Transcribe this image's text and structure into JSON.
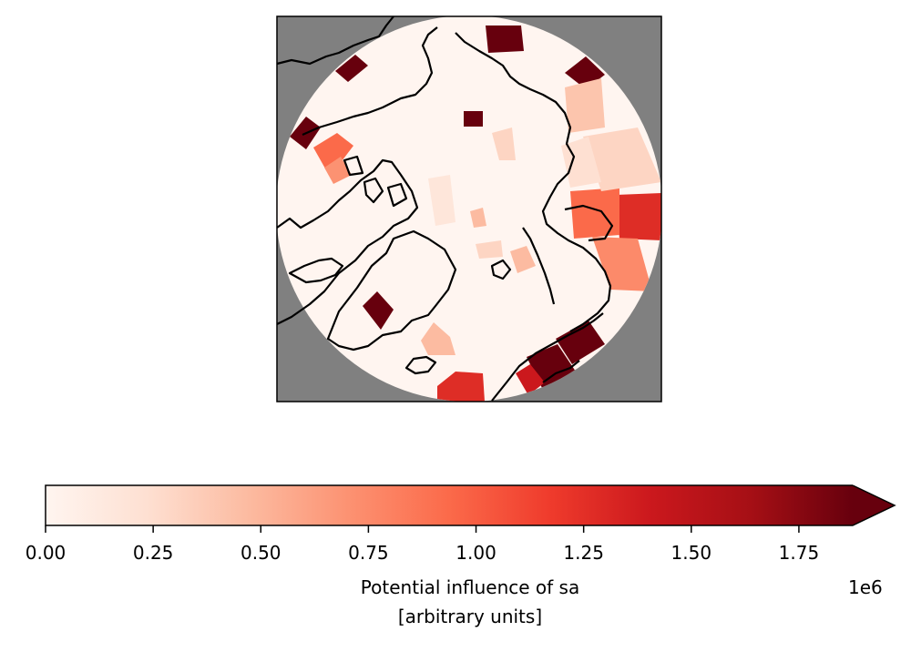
{
  "map": {
    "projection": "north-polar-stereographic",
    "ocean_color": "#fff5f0",
    "land_mask_color": "#808080",
    "coastline_color": "#000000"
  },
  "colorbar": {
    "colormap": "Reds",
    "min": 0,
    "max": 1875000,
    "extend": "max",
    "ticks": [
      "0.00",
      "0.25",
      "0.50",
      "0.75",
      "1.00",
      "1.25",
      "1.50",
      "1.75"
    ],
    "offset_text": "1e6",
    "label_line1": "Potential influence of sa",
    "label_line2": "[arbitrary units]",
    "stops": [
      "#fff5f0",
      "#fee0d2",
      "#fcbba1",
      "#fc9272",
      "#fb6a4a",
      "#ef3b2c",
      "#cb181d",
      "#a50f15",
      "#67000d"
    ]
  }
}
